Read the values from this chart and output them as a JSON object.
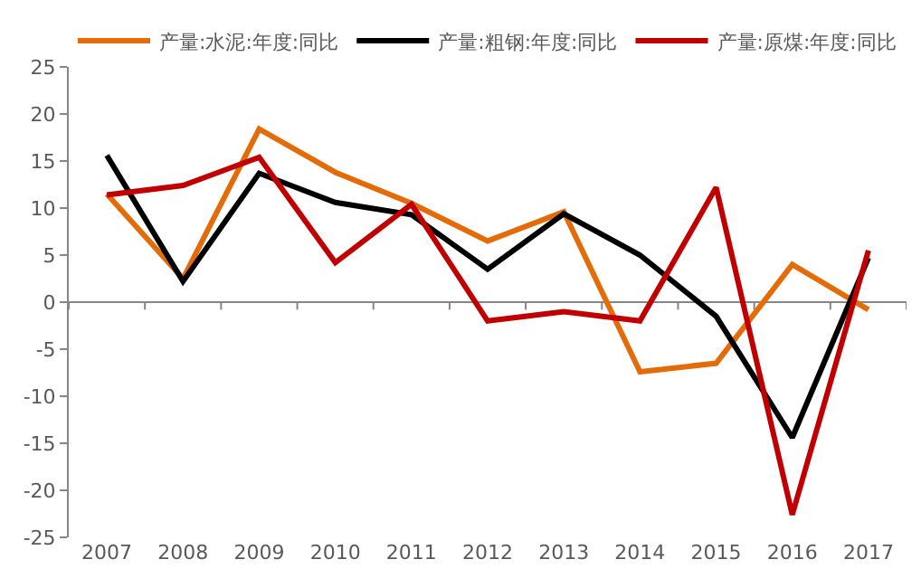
{
  "chart_data": {
    "type": "line",
    "categories": [
      "2007",
      "2008",
      "2009",
      "2010",
      "2011",
      "2012",
      "2013",
      "2014",
      "2015",
      "2016",
      "2017"
    ],
    "series": [
      {
        "name": "产量:水泥:年度:同比",
        "color": "#e36c09",
        "values": [
          11.5,
          2.5,
          18.4,
          13.8,
          10.5,
          6.5,
          9.6,
          -7.4,
          -6.5,
          4.0,
          -0.8
        ]
      },
      {
        "name": "产量:粗钢:年度:同比",
        "color": "#000000",
        "values": [
          15.6,
          2.2,
          13.7,
          10.6,
          9.3,
          3.5,
          9.4,
          5.0,
          -1.5,
          -14.4,
          4.7
        ]
      },
      {
        "name": "产量:原煤:年度:同比",
        "color": "#c00000",
        "values": [
          11.4,
          12.4,
          15.4,
          4.2,
          10.4,
          -2.0,
          -1.0,
          -2.0,
          12.2,
          -22.6,
          5.5
        ]
      }
    ],
    "ylim": [
      -25,
      25
    ],
    "yticks": [
      -25,
      -20,
      -15,
      -10,
      -5,
      0,
      5,
      10,
      15,
      20,
      25
    ],
    "legend": "top",
    "marker": "none",
    "line_style": "solid"
  }
}
